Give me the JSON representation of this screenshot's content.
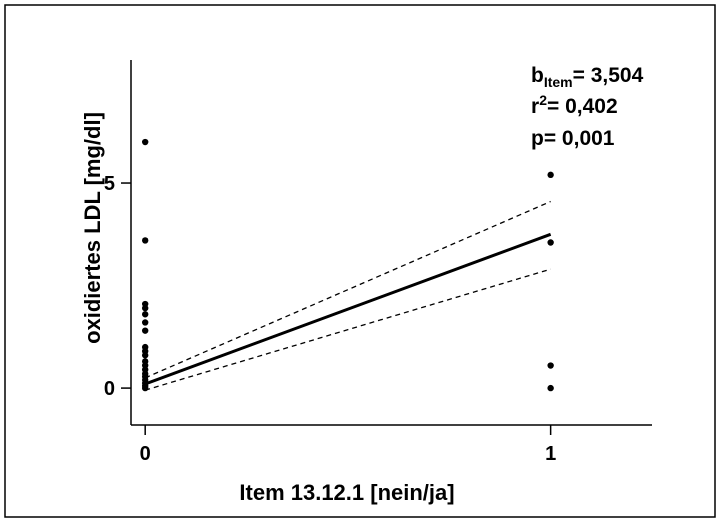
{
  "chart_data": {
    "type": "scatter",
    "xlabel": "Item 13.12.1 [nein/ja]",
    "ylabel": "oxidiertes LDL [mg/dl]",
    "xlim": [
      -0.035,
      1.25
    ],
    "ylim": [
      -0.9,
      8.0
    ],
    "x_ticks": [
      0,
      1
    ],
    "y_ticks": [
      0,
      5
    ],
    "x_tick_labels": [
      "0",
      "1"
    ],
    "y_tick_labels": [
      "0",
      "5"
    ],
    "grid": false,
    "points": [
      {
        "x": 0,
        "y": 6.0
      },
      {
        "x": 0,
        "y": 3.6
      },
      {
        "x": 0,
        "y": 2.05
      },
      {
        "x": 0,
        "y": 1.95
      },
      {
        "x": 0,
        "y": 1.8
      },
      {
        "x": 0,
        "y": 1.6
      },
      {
        "x": 0,
        "y": 1.4
      },
      {
        "x": 0,
        "y": 1.0
      },
      {
        "x": 0,
        "y": 0.9
      },
      {
        "x": 0,
        "y": 0.8
      },
      {
        "x": 0,
        "y": 0.65
      },
      {
        "x": 0,
        "y": 0.55
      },
      {
        "x": 0,
        "y": 0.45
      },
      {
        "x": 0,
        "y": 0.35
      },
      {
        "x": 0,
        "y": 0.28
      },
      {
        "x": 0,
        "y": 0.2
      },
      {
        "x": 0,
        "y": 0.12
      },
      {
        "x": 0,
        "y": 0.05
      },
      {
        "x": 0,
        "y": 0.0
      },
      {
        "x": 1,
        "y": 5.2
      },
      {
        "x": 1,
        "y": 3.55
      },
      {
        "x": 1,
        "y": 0.55
      },
      {
        "x": 1,
        "y": 0.0
      }
    ],
    "regression": {
      "fit": [
        [
          0,
          0.1
        ],
        [
          1,
          3.75
        ]
      ],
      "ci_upper": [
        [
          0,
          0.25
        ],
        [
          1,
          4.55
        ]
      ],
      "ci_lower": [
        [
          0,
          -0.05
        ],
        [
          1,
          2.9
        ]
      ]
    },
    "annotation": {
      "slope_label": "b",
      "slope_subscript": "Item",
      "slope_value": "= 3,504",
      "r2_label": "r",
      "r2_superscript": "2",
      "r2_value": "= 0,402",
      "p_text": "p= 0,001"
    }
  }
}
